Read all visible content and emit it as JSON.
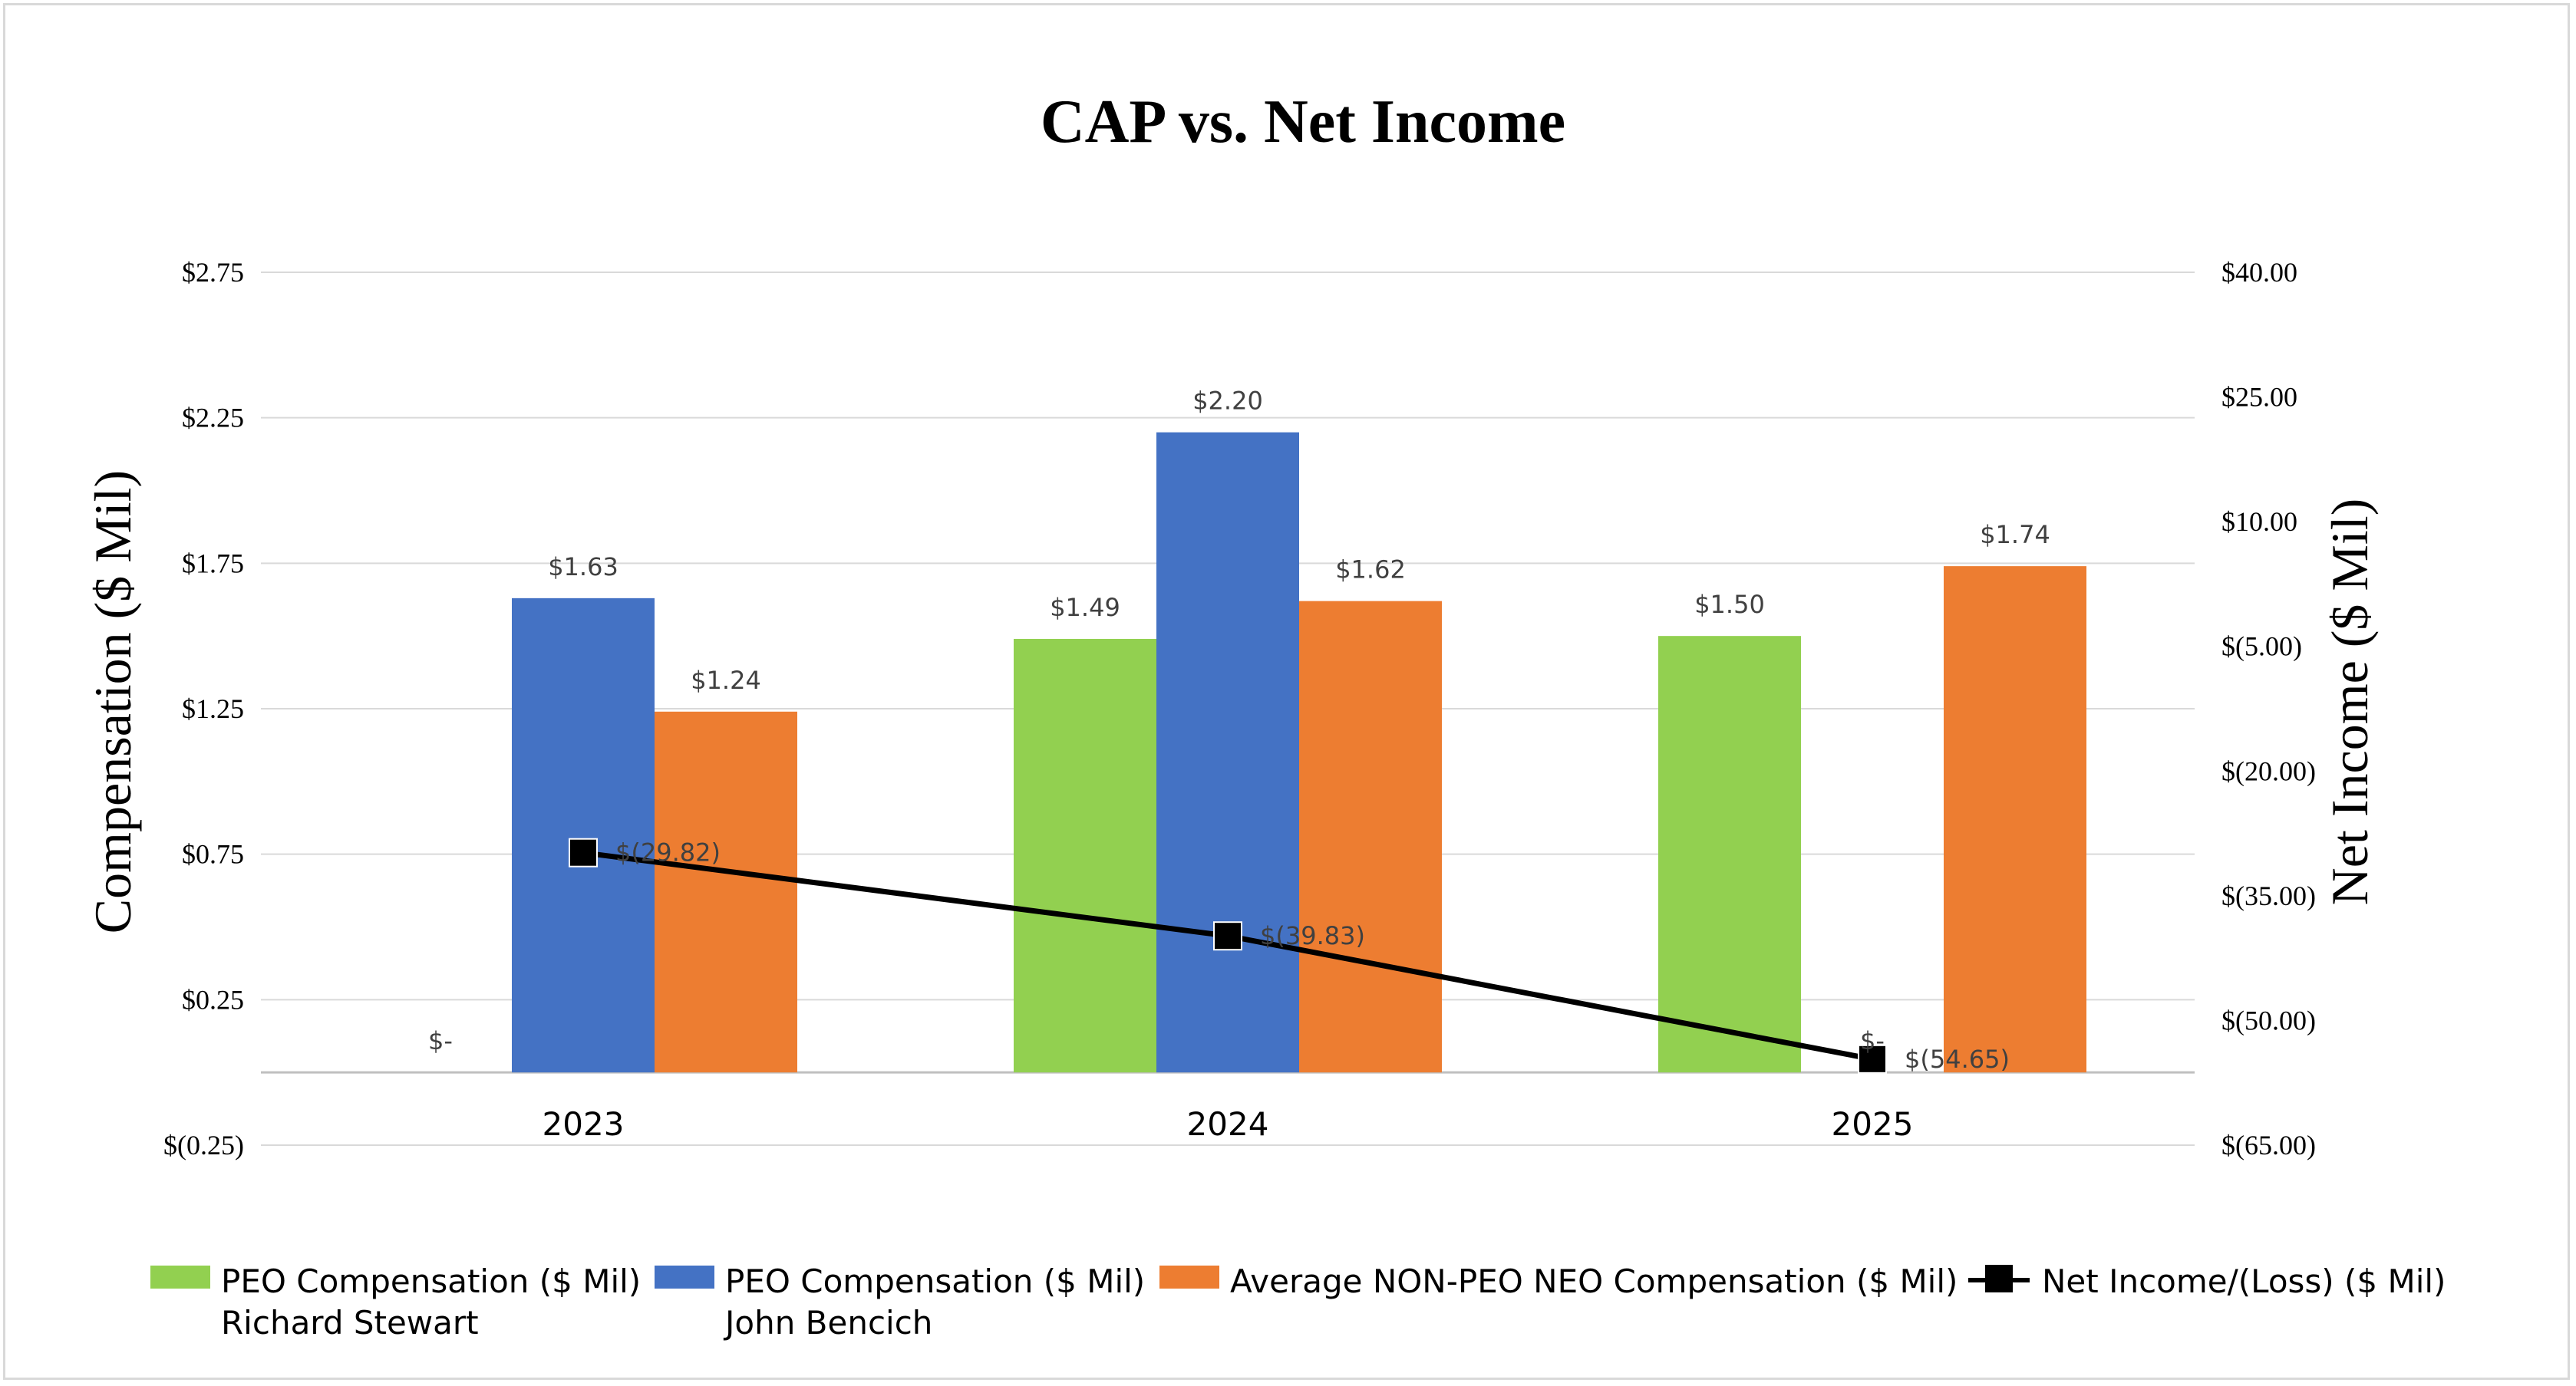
{
  "chart_data": {
    "type": "bar",
    "title": "CAP vs. Net Income",
    "categories": [
      "2023",
      "2024",
      "2025"
    ],
    "y_left": {
      "label": "Compensation ($ Mil)",
      "min": -0.25,
      "max": 2.75,
      "ticks": [
        -0.25,
        0.25,
        0.75,
        1.25,
        1.75,
        2.25,
        2.75
      ],
      "tick_labels": [
        "$(0.25)",
        "$0.25",
        "$0.75",
        "$1.25",
        "$1.75",
        "$2.25",
        "$2.75"
      ]
    },
    "y_right": {
      "label": "Net Income ($ Mil)",
      "min": -65,
      "max": 40,
      "ticks": [
        -65,
        -50,
        -35,
        -20,
        -5,
        10,
        25,
        40
      ],
      "tick_labels": [
        "$(65.00)",
        "$(50.00)",
        "$(35.00)",
        "$(20.00)",
        "$(5.00)",
        "$10.00",
        "$25.00",
        "$40.00"
      ]
    },
    "grid": true,
    "legend_position": "bottom",
    "series": [
      {
        "name": "PEO Compensation ($ Mil)",
        "name_line2": "Richard Stewart",
        "type": "bar",
        "axis": "left",
        "color": "#92d050",
        "values": [
          0,
          1.49,
          1.5
        ],
        "labels": [
          "$-",
          "$1.49",
          "$1.50"
        ]
      },
      {
        "name": "PEO Compensation ($ Mil)",
        "name_line2": "John Bencich",
        "type": "bar",
        "axis": "left",
        "color": "#4472c4",
        "values": [
          1.63,
          2.2,
          0
        ],
        "labels": [
          "$1.63",
          "$2.20",
          "$-"
        ]
      },
      {
        "name": "Average NON-PEO NEO Compensation ($ Mil)",
        "name_line2": "",
        "type": "bar",
        "axis": "left",
        "color": "#ed7d31",
        "values": [
          1.24,
          1.62,
          1.74
        ],
        "labels": [
          "$1.24",
          "$1.62",
          "$1.74"
        ]
      },
      {
        "name": "Net Income/(Loss) ($ Mil)",
        "name_line2": "",
        "type": "line",
        "axis": "right",
        "color": "#000000",
        "values": [
          -29.82,
          -39.83,
          -54.65
        ],
        "labels": [
          "$(29.82)",
          "$(39.83)",
          "$(54.65)"
        ]
      }
    ]
  }
}
